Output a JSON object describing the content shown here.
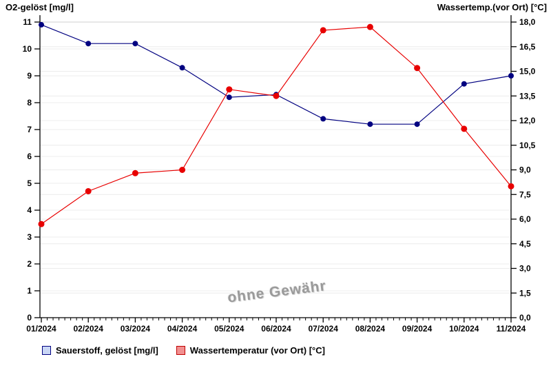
{
  "chart_data": {
    "type": "line",
    "title_left": "O2-gelöst [mg/l]",
    "title_right": "Wassertemp.(vor Ort) [°C]",
    "x_categories": [
      "01/2024",
      "02/2024",
      "03/2024",
      "04/2024",
      "05/2024",
      "06/2024",
      "07/2024",
      "08/2024",
      "09/2024",
      "10/2024",
      "11/2024"
    ],
    "series": [
      {
        "name": "Sauerstoff, gelöst [mg/l]",
        "axis": "left",
        "color": "#000080",
        "point_radius": 4,
        "legend_swatch_fill": "#c9d6f5",
        "legend_swatch_border": "#000080",
        "values": [
          10.9,
          10.2,
          10.2,
          9.3,
          8.2,
          8.3,
          7.4,
          7.2,
          7.2,
          8.7,
          9.0
        ]
      },
      {
        "name": "Wassertemperatur (vor Ort) [°C]",
        "axis": "right",
        "color": "#e80000",
        "point_radius": 4.5,
        "legend_swatch_fill": "#f19090",
        "legend_swatch_border": "#c00000",
        "values": [
          5.7,
          7.7,
          8.8,
          9.0,
          13.9,
          13.5,
          17.5,
          17.7,
          15.2,
          11.5,
          8.0
        ]
      }
    ],
    "left_axis": {
      "min": 0,
      "max": 11,
      "step": 1,
      "tick_labels": [
        "0",
        "1",
        "2",
        "3",
        "4",
        "5",
        "6",
        "7",
        "8",
        "9",
        "10",
        "11"
      ]
    },
    "right_axis": {
      "min": 0,
      "max": 18,
      "step": 1.5,
      "tick_labels": [
        "0,0",
        "1,5",
        "3,0",
        "4,5",
        "6,0",
        "7,5",
        "9,0",
        "10,5",
        "12,0",
        "13,5",
        "15,0",
        "16,5",
        "18,0"
      ]
    },
    "x_minor_ticks_per_interval": 7,
    "grid": true,
    "legend_position": "bottom",
    "watermark": "ohne Gewähr",
    "colors": {
      "axis": "#000000",
      "gridline": "#ececec",
      "top_gridline": "#cfcfcf",
      "watermark_text": "#9a9a9a"
    }
  }
}
